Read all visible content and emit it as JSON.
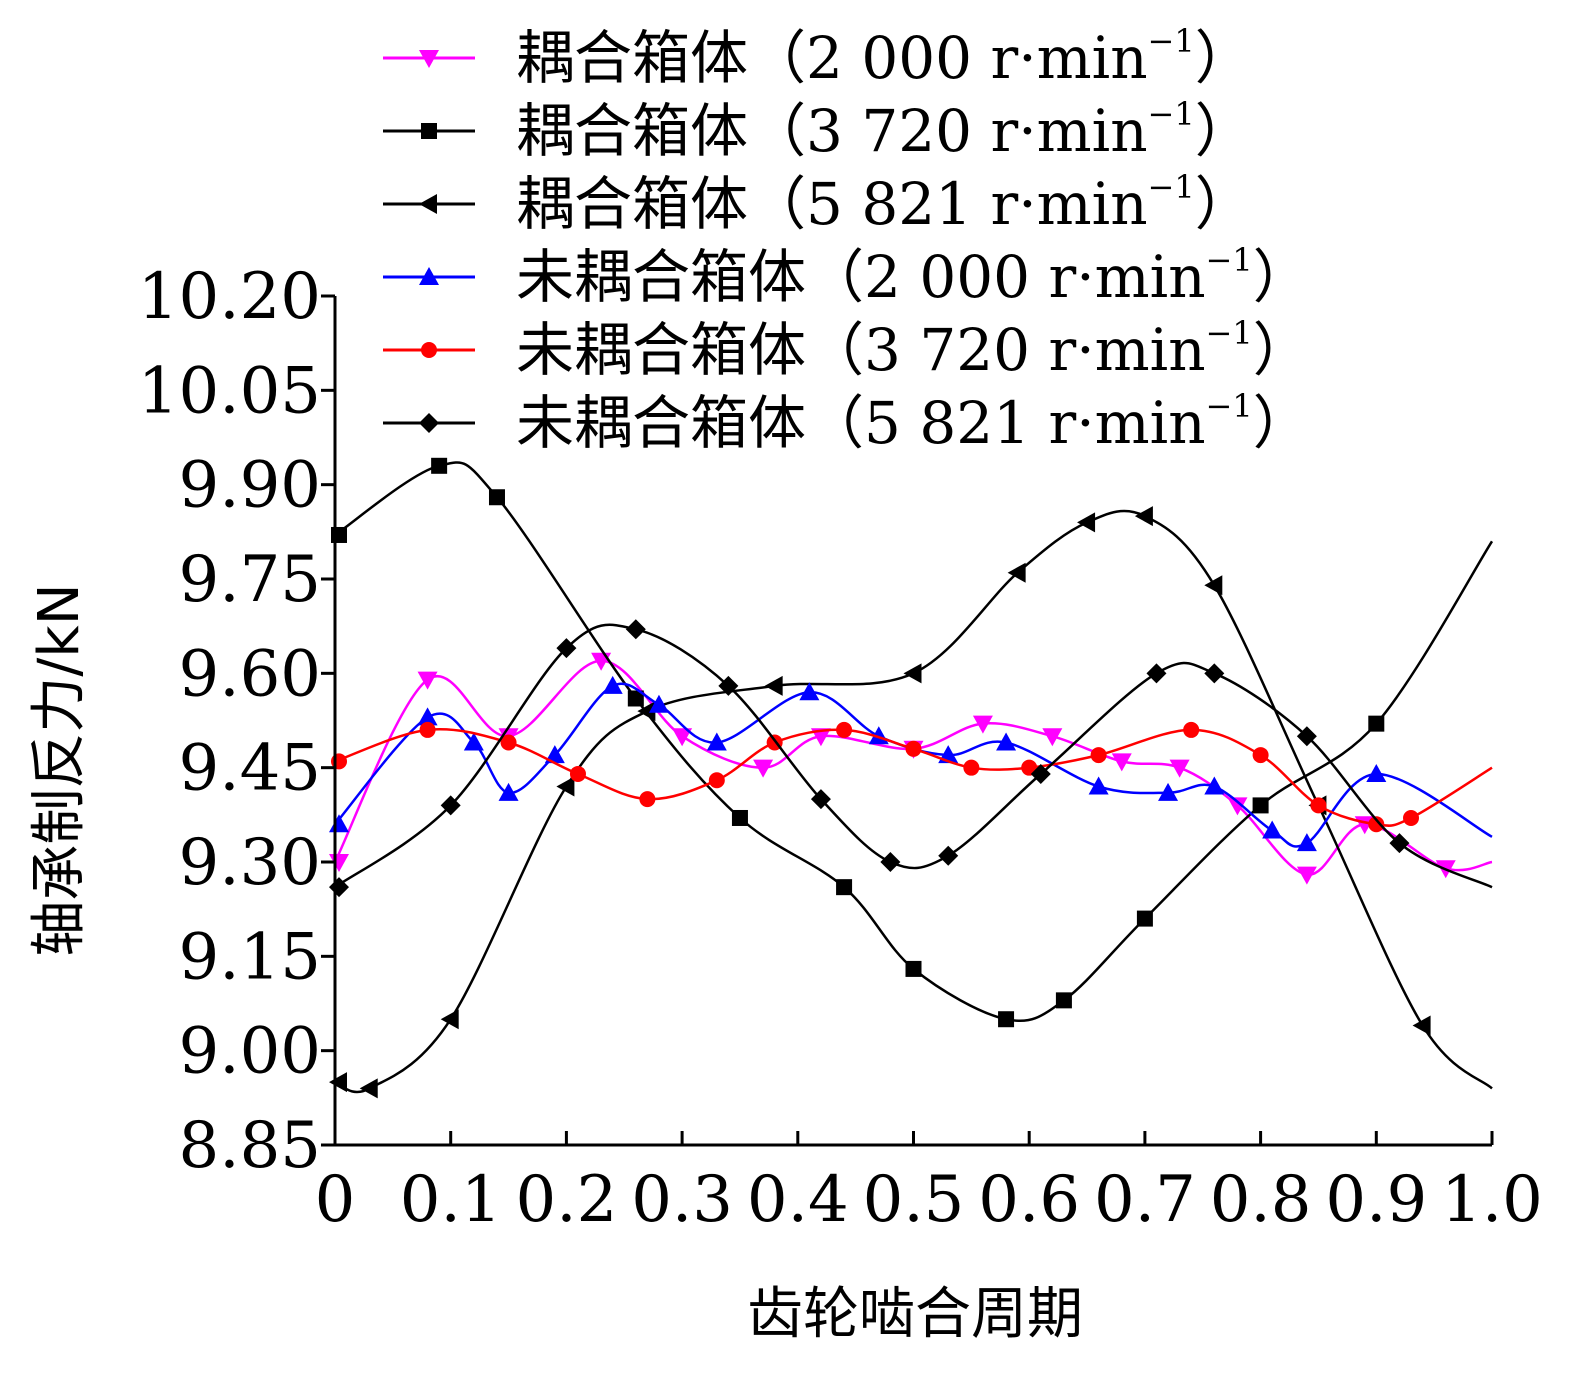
{
  "chart_data": {
    "type": "line",
    "xlabel": "齿轮啮合周期",
    "ylabel": "轴承制反力/kN",
    "xlim": [
      0,
      1.0
    ],
    "ylim": [
      8.85,
      10.2
    ],
    "x_ticks": [
      "0",
      "0.1",
      "0.2",
      "0.3",
      "0.4",
      "0.5",
      "0.6",
      "0.7",
      "0.8",
      "0.9",
      "1.0"
    ],
    "y_ticks": [
      "10.20",
      "10.05",
      "9.90",
      "9.75",
      "9.60",
      "9.45",
      "9.30",
      "9.15",
      "9.00",
      "8.85"
    ],
    "legend_location": "top",
    "series": [
      {
        "name": "耦合箱体（2 000 r·min⁻¹）",
        "label_main": "耦合箱体（2 000 r·min",
        "label_sup": "−1",
        "label_end": "）",
        "color": "#ff00ff",
        "marker": "triangle-down",
        "x": [
          0,
          0.08,
          0.15,
          0.23,
          0.3,
          0.37,
          0.42,
          0.5,
          0.56,
          0.62,
          0.68,
          0.73,
          0.78,
          0.84,
          0.89,
          0.96,
          1.0
        ],
        "y": [
          9.3,
          9.59,
          9.5,
          9.62,
          9.5,
          9.45,
          9.5,
          9.48,
          9.52,
          9.5,
          9.46,
          9.45,
          9.39,
          9.28,
          9.36,
          9.29,
          9.3
        ]
      },
      {
        "name": "耦合箱体（3 720 r·min⁻¹）",
        "label_main": "耦合箱体（3 720 r·min",
        "label_sup": "−1",
        "label_end": "）",
        "color": "#000000",
        "marker": "square",
        "x": [
          0,
          0.09,
          0.14,
          0.26,
          0.35,
          0.44,
          0.5,
          0.58,
          0.63,
          0.7,
          0.8,
          0.9,
          1.0
        ],
        "y": [
          9.82,
          9.93,
          9.88,
          9.56,
          9.37,
          9.26,
          9.13,
          9.05,
          9.08,
          9.21,
          9.39,
          9.52,
          9.81
        ]
      },
      {
        "name": "耦合箱体（5 821 r·min⁻¹）",
        "label_main": "耦合箱体（5 821 r·min",
        "label_sup": "−1",
        "label_end": "）",
        "color": "#000000",
        "marker": "triangle-left",
        "x": [
          0,
          0.03,
          0.1,
          0.2,
          0.27,
          0.38,
          0.5,
          0.59,
          0.65,
          0.7,
          0.76,
          0.85,
          0.94,
          1.0
        ],
        "y": [
          8.95,
          8.94,
          9.05,
          9.42,
          9.54,
          9.58,
          9.6,
          9.76,
          9.84,
          9.85,
          9.74,
          9.39,
          9.04,
          8.94
        ]
      },
      {
        "name": "未耦合箱体（2 000 r·min⁻¹）",
        "label_main": "未耦合箱体（2 000 r·min",
        "label_sup": "−1",
        "label_end": "）",
        "color": "#0000ff",
        "marker": "triangle-up",
        "x": [
          0,
          0.08,
          0.12,
          0.15,
          0.19,
          0.24,
          0.28,
          0.33,
          0.41,
          0.47,
          0.53,
          0.58,
          0.66,
          0.72,
          0.76,
          0.81,
          0.84,
          0.9,
          1.0
        ],
        "y": [
          9.36,
          9.53,
          9.49,
          9.41,
          9.47,
          9.58,
          9.55,
          9.49,
          9.57,
          9.5,
          9.47,
          9.49,
          9.42,
          9.41,
          9.42,
          9.35,
          9.33,
          9.44,
          9.34
        ]
      },
      {
        "name": "未耦合箱体（3 720 r·min⁻¹）",
        "label_main": "未耦合箱体（3 720 r·min",
        "label_sup": "−1",
        "label_end": "）",
        "color": "#ff0000",
        "marker": "circle",
        "x": [
          0,
          0.08,
          0.15,
          0.21,
          0.27,
          0.33,
          0.38,
          0.44,
          0.5,
          0.55,
          0.6,
          0.66,
          0.74,
          0.8,
          0.85,
          0.9,
          0.93,
          1.0
        ],
        "y": [
          9.46,
          9.51,
          9.49,
          9.44,
          9.4,
          9.43,
          9.49,
          9.51,
          9.48,
          9.45,
          9.45,
          9.47,
          9.51,
          9.47,
          9.39,
          9.36,
          9.37,
          9.45
        ]
      },
      {
        "name": "未耦合箱体（5 821 r·min⁻¹）",
        "label_main": "未耦合箱体（5 821 r·min",
        "label_sup": "−1",
        "label_end": "）",
        "color": "#000000",
        "marker": "diamond",
        "x": [
          0,
          0.1,
          0.2,
          0.26,
          0.34,
          0.42,
          0.48,
          0.53,
          0.61,
          0.71,
          0.76,
          0.84,
          0.92,
          1.0
        ],
        "y": [
          9.26,
          9.39,
          9.64,
          9.67,
          9.58,
          9.4,
          9.3,
          9.31,
          9.44,
          9.6,
          9.6,
          9.5,
          9.33,
          9.26
        ]
      }
    ]
  }
}
